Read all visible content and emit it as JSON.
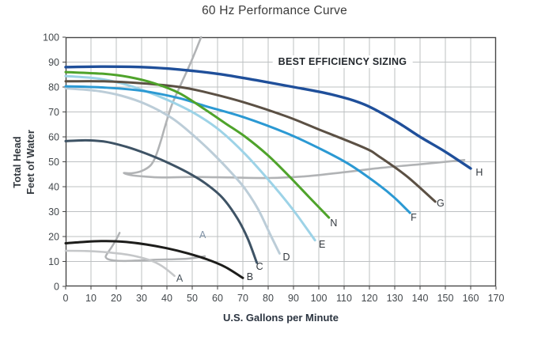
{
  "header": {
    "title": "60 Hz Performance Curve"
  },
  "axes": {
    "x_label": "U.S. Gallons per Minute",
    "y_label_line1": "Total Head",
    "y_label_line2": "Feet of Water"
  },
  "annotation": {
    "text": "BEST EFFICIENCY SIZING"
  },
  "colors": {
    "grid": "#bdc0c2",
    "frame": "#474747",
    "tick_text": "#43484c",
    "curve_label_default": "#31373d",
    "efficiency_gray": "#b1b3b5"
  },
  "chart_data": {
    "type": "line",
    "title": "60 Hz Performance Curve",
    "xlabel": "U.S. Gallons per Minute",
    "ylabel": "Total Head, Feet of Water",
    "xlim": [
      0,
      170
    ],
    "ylim": [
      0,
      100
    ],
    "x_tick_step": 10,
    "y_tick_step": 10,
    "grid": true,
    "annotation": "BEST EFFICIENCY SIZING",
    "series": [
      {
        "name": "best-efficiency-large",
        "color": "#b1b3b5",
        "width": 2.6,
        "points": [
          [
            53.5,
            100
          ],
          [
            49.5,
            90
          ],
          [
            45.5,
            81
          ],
          [
            42,
            73
          ],
          [
            39.5,
            65
          ],
          [
            37.5,
            58
          ],
          [
            35.5,
            52
          ],
          [
            33.5,
            48.5
          ],
          [
            30,
            46.3
          ],
          [
            26,
            45.4
          ],
          [
            23,
            45.5
          ],
          [
            26,
            44.6
          ],
          [
            31,
            44.1
          ],
          [
            38,
            43.7
          ],
          [
            50,
            43.9
          ],
          [
            65,
            43.7
          ],
          [
            80,
            43.5
          ],
          [
            95,
            44.2
          ],
          [
            110,
            45.8
          ],
          [
            125,
            47.6
          ],
          [
            140,
            49
          ],
          [
            152,
            50.2
          ],
          [
            157.5,
            50.7
          ]
        ]
      },
      {
        "name": "best-efficiency-small",
        "color": "#b1b3b5",
        "width": 2.5,
        "points": [
          [
            21.3,
            21.5
          ],
          [
            19.8,
            18.5
          ],
          [
            18,
            15.5
          ],
          [
            16.3,
            13
          ],
          [
            15.8,
            11.8
          ],
          [
            16.8,
            10.9
          ],
          [
            19,
            10.4
          ],
          [
            23,
            10.2
          ],
          [
            29,
            10.4
          ],
          [
            36,
            10.7
          ],
          [
            43,
            10.9
          ],
          [
            49,
            11.2
          ],
          [
            55,
            12.1
          ]
        ]
      },
      {
        "name": "A",
        "color": "#c5c7c9",
        "width": 2.6,
        "points": [
          [
            0,
            14.3
          ],
          [
            8,
            14.2
          ],
          [
            16,
            13.7
          ],
          [
            24,
            12.8
          ],
          [
            30,
            11.5
          ],
          [
            35,
            9.8
          ],
          [
            39,
            7.5
          ],
          [
            43,
            4.2
          ]
        ]
      },
      {
        "name": "D",
        "color": "#bccdd8",
        "width": 3,
        "points": [
          [
            0,
            79.5
          ],
          [
            12,
            78.5
          ],
          [
            22,
            76.5
          ],
          [
            32,
            73
          ],
          [
            42,
            67.5
          ],
          [
            50,
            61
          ],
          [
            58,
            53.5
          ],
          [
            66,
            45
          ],
          [
            71,
            39
          ],
          [
            76,
            31
          ],
          [
            80.5,
            21.5
          ],
          [
            84.5,
            13.2
          ]
        ]
      },
      {
        "name": "E",
        "color": "#9dd3e7",
        "width": 3,
        "points": [
          [
            0,
            84.4
          ],
          [
            12,
            83.5
          ],
          [
            22,
            81.5
          ],
          [
            32,
            78.2
          ],
          [
            42,
            74
          ],
          [
            52,
            68.8
          ],
          [
            61,
            62.5
          ],
          [
            71,
            53
          ],
          [
            82,
            40.5
          ],
          [
            90,
            30.5
          ],
          [
            98.5,
            18.5
          ]
        ]
      },
      {
        "name": "B",
        "color": "#1d1d1b",
        "width": 3,
        "points": [
          [
            0,
            17.3
          ],
          [
            8,
            17.9
          ],
          [
            16,
            18.2
          ],
          [
            24,
            17.8
          ],
          [
            32,
            16.8
          ],
          [
            40,
            15.3
          ],
          [
            48,
            13.3
          ],
          [
            56,
            10.8
          ],
          [
            63,
            7.8
          ],
          [
            70,
            3.4
          ]
        ]
      },
      {
        "name": "C",
        "color": "#3e5365",
        "width": 3,
        "points": [
          [
            0,
            58.3
          ],
          [
            8,
            58.6
          ],
          [
            16,
            58
          ],
          [
            24,
            56
          ],
          [
            32,
            53.2
          ],
          [
            40,
            49.8
          ],
          [
            48,
            45.8
          ],
          [
            55,
            41.5
          ],
          [
            62,
            35.5
          ],
          [
            68,
            27
          ],
          [
            72,
            19
          ],
          [
            75.5,
            9.5
          ]
        ]
      },
      {
        "name": "F",
        "color": "#2b99d3",
        "width": 3,
        "points": [
          [
            0,
            80.3
          ],
          [
            15,
            79.8
          ],
          [
            30,
            78.5
          ],
          [
            45,
            75.5
          ],
          [
            55,
            72.4
          ],
          [
            70,
            68
          ],
          [
            87,
            61.6
          ],
          [
            100,
            55.5
          ],
          [
            112,
            49
          ],
          [
            124,
            40.5
          ],
          [
            130,
            35.5
          ],
          [
            136,
            29.5
          ]
        ]
      },
      {
        "name": "G",
        "color": "#5b5044",
        "width": 3,
        "points": [
          [
            0,
            82.3
          ],
          [
            15,
            82.3
          ],
          [
            30,
            81.5
          ],
          [
            45,
            80
          ],
          [
            55,
            78
          ],
          [
            70,
            74
          ],
          [
            87,
            68.3
          ],
          [
            100,
            63
          ],
          [
            118,
            55.6
          ],
          [
            124,
            52
          ],
          [
            135,
            44
          ],
          [
            146,
            34
          ]
        ]
      },
      {
        "name": "N",
        "color": "#4fa32b",
        "width": 3,
        "points": [
          [
            0,
            86
          ],
          [
            15,
            85.3
          ],
          [
            25,
            84
          ],
          [
            35,
            81.5
          ],
          [
            45,
            77.5
          ],
          [
            55,
            71
          ],
          [
            63,
            65.5
          ],
          [
            71,
            60
          ],
          [
            80,
            52.5
          ],
          [
            88,
            44.5
          ],
          [
            96,
            36
          ],
          [
            104,
            27.6
          ]
        ]
      },
      {
        "name": "H",
        "color": "#1f4f9a",
        "width": 3.4,
        "points": [
          [
            0,
            88
          ],
          [
            15,
            88.2
          ],
          [
            30,
            88
          ],
          [
            45,
            87
          ],
          [
            60,
            85.3
          ],
          [
            75,
            82.8
          ],
          [
            90,
            80
          ],
          [
            105,
            77
          ],
          [
            118,
            73
          ],
          [
            130,
            66.5
          ],
          [
            140,
            60
          ],
          [
            150,
            54
          ],
          [
            160,
            47.3
          ]
        ]
      }
    ],
    "curve_labels": [
      {
        "text": "A",
        "x": 54.1,
        "y": 19.4,
        "color": "#8093a7"
      },
      {
        "text": "A",
        "x": 45.0,
        "y": 1.9,
        "color": "#4a545e"
      },
      {
        "text": "B",
        "x": 72.8,
        "y": 2.5,
        "color": "#31373d"
      },
      {
        "text": "C",
        "x": 76.6,
        "y": 6.7,
        "color": "#31373d"
      },
      {
        "text": "D",
        "x": 87.2,
        "y": 10.5,
        "color": "#31373d"
      },
      {
        "text": "E",
        "x": 101.3,
        "y": 15.6,
        "color": "#31373d"
      },
      {
        "text": "N",
        "x": 105.9,
        "y": 24.1,
        "color": "#31373d"
      },
      {
        "text": "F",
        "x": 137.5,
        "y": 26.3,
        "color": "#31373d"
      },
      {
        "text": "G",
        "x": 148.1,
        "y": 32.1,
        "color": "#31373d"
      },
      {
        "text": "H",
        "x": 163.4,
        "y": 44.4,
        "color": "#31373d"
      }
    ]
  }
}
